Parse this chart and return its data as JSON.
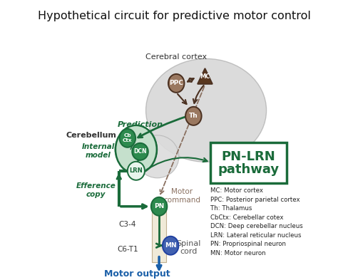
{
  "title": "Hypothetical circuit for predictive motor control",
  "title_fontsize": 11.5,
  "bg_color": "#ffffff",
  "legend_items": [
    "MC: Motor cortex",
    "PPC: Posterior parietal cortex",
    "Th: Thalamus",
    "CbCtx: Cerebellar cotex",
    "DCN: Deep cerebellar nucleus",
    "LRN: Lateral reticular nucleus",
    "PN: Propriospinal neuron",
    "MN: Motor neuron"
  ],
  "dark_brown": "#4a3020",
  "green_dark": "#1a6b3a",
  "green_fill": "#2d8a4e",
  "blue_arrow": "#1a5fa8",
  "node_brown_fill": "#9a7860",
  "cerebellum_green": "#c5e0cc",
  "spinal_cream": "#f0ead8",
  "brain_gray": "#d0d0d0",
  "cereb_gray": "#dcdcdc"
}
